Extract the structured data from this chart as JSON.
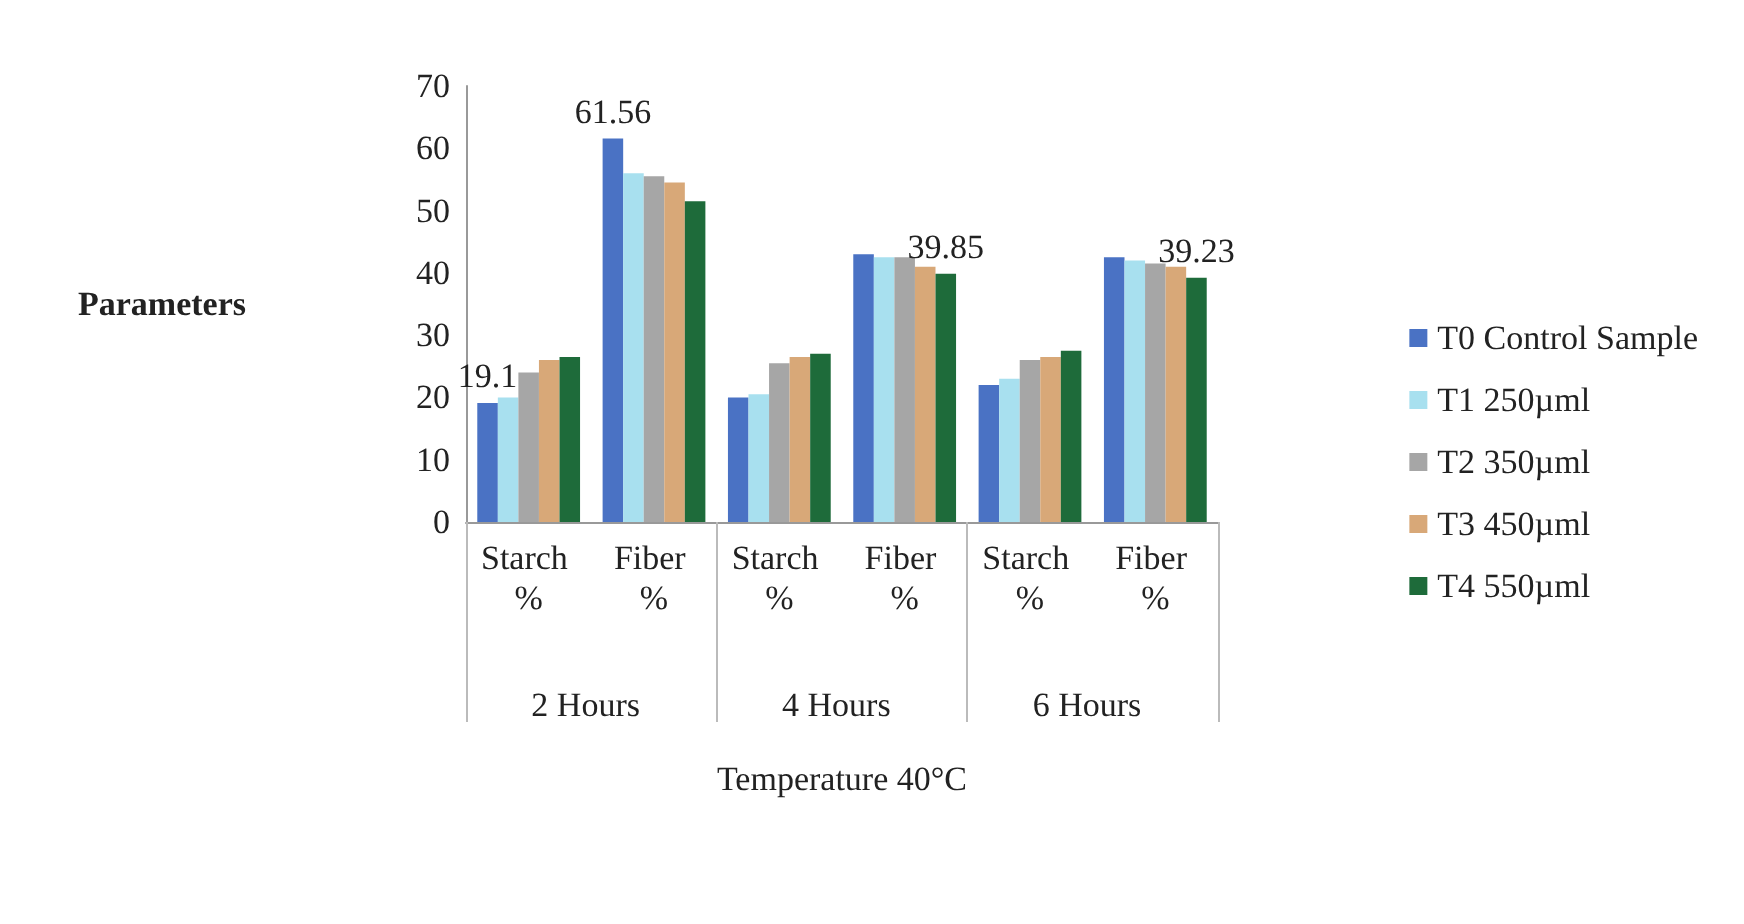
{
  "chart_data": {
    "type": "bar",
    "ylabel": "Parameters",
    "xlabel": "Temperature 40°C",
    "categories": [
      "Starch %",
      "Fiber %",
      "Starch %",
      "Fiber %",
      "Starch %",
      "Fiber %"
    ],
    "annotations": [
      "2 Hours",
      "4 Hours",
      "6 Hours"
    ],
    "series": [
      {
        "name": "T0 Control Sample",
        "color": "#4a72c4",
        "values": [
          19.1,
          61.56,
          20,
          43,
          22,
          42.5
        ],
        "value_labels": [
          "19.1",
          "61.56",
          null,
          null,
          null,
          null
        ]
      },
      {
        "name": "T1 250µml",
        "color": "#a8e0ef",
        "values": [
          20,
          56,
          20.5,
          42.5,
          23,
          42
        ]
      },
      {
        "name": "T2 350µml",
        "color": "#a6a6a6",
        "values": [
          24,
          55.5,
          25.5,
          42.5,
          26,
          41.5
        ]
      },
      {
        "name": "T3 450µml",
        "color": "#d8a878",
        "values": [
          26,
          54.5,
          26.5,
          41,
          26.5,
          41
        ]
      },
      {
        "name": "T4 550µml",
        "color": "#1e6b3a",
        "values": [
          26.5,
          51.5,
          27,
          39.85,
          27.5,
          39.23
        ],
        "value_labels": [
          null,
          null,
          null,
          "39.85",
          null,
          "39.23"
        ]
      }
    ],
    "ylim": [
      0,
      70
    ],
    "yticks": [
      0,
      10,
      20,
      30,
      40,
      50,
      60,
      70
    ],
    "grid": false,
    "legend": "right"
  }
}
